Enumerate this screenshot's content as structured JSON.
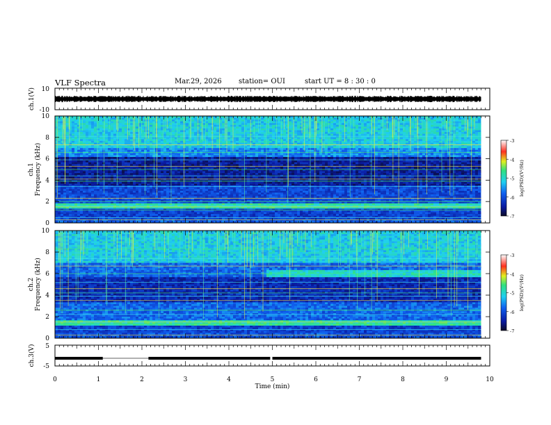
{
  "header": {
    "title": "VLF Spectra",
    "date": "Mar.29, 2026",
    "station": "station= OUI",
    "start_ut": "start  UT =  8 : 30 : 0"
  },
  "chart_data": [
    {
      "type": "line",
      "panel": "waveform-ch1",
      "ylabel": "ch.1(V)",
      "ylim": [
        -10,
        10
      ],
      "yticks": [
        "10",
        "-10"
      ],
      "x_range": [
        0,
        9.8
      ],
      "center_value": 0,
      "envelope_amplitude": 2.5
    },
    {
      "type": "heatmap",
      "panel": "spectrogram-ch1",
      "ylabel_lines": [
        "ch.1",
        "Frequency (kHz)"
      ],
      "ylim": [
        0,
        10
      ],
      "yticks": [
        "0",
        "2",
        "4",
        "6",
        "8",
        "10"
      ],
      "x_range": [
        0,
        9.8
      ],
      "colorbar": {
        "label": "log(PSD)(V²/Hz)",
        "range": [
          -7,
          -3
        ],
        "ticks": [
          "-3",
          "-4",
          "-5",
          "-6",
          "-7"
        ]
      },
      "bands": [
        {
          "lo": 0.0,
          "hi": 0.4,
          "level": 0.28
        },
        {
          "lo": 0.4,
          "hi": 1.3,
          "level": 0.22
        },
        {
          "lo": 1.3,
          "hi": 1.8,
          "level": 0.55
        },
        {
          "lo": 1.8,
          "hi": 3.5,
          "level": 0.24
        },
        {
          "lo": 3.5,
          "hi": 6.2,
          "level": 0.12
        },
        {
          "lo": 6.2,
          "hi": 7.0,
          "level": 0.35
        },
        {
          "lo": 7.0,
          "hi": 10.0,
          "level": 0.46
        }
      ],
      "lines_khz": [
        0.3,
        0.5,
        1.2,
        1.5,
        1.6,
        2.0,
        2.3,
        3.4,
        3.9,
        4.1,
        4.4,
        5.0,
        5.3,
        5.9,
        6.6,
        7.3,
        8.1
      ]
    },
    {
      "type": "heatmap",
      "panel": "spectrogram-ch2",
      "ylabel_lines": [
        "ch.2",
        "Frequency (kHz)"
      ],
      "ylim": [
        0,
        10
      ],
      "yticks": [
        "0",
        "2",
        "4",
        "6",
        "8",
        "10"
      ],
      "x_range": [
        0,
        9.8
      ],
      "colorbar": {
        "label": "log(PSD)(V²/Hz)",
        "range": [
          -7,
          -3
        ],
        "ticks": [
          "-3",
          "-4",
          "-5",
          "-6",
          "-7"
        ]
      },
      "bands": [
        {
          "lo": 0.0,
          "hi": 0.5,
          "level": 0.26
        },
        {
          "lo": 0.5,
          "hi": 1.2,
          "level": 0.22
        },
        {
          "lo": 1.2,
          "hi": 1.6,
          "level": 0.55
        },
        {
          "lo": 1.6,
          "hi": 3.4,
          "level": 0.3
        },
        {
          "lo": 3.4,
          "hi": 5.6,
          "level": 0.16
        },
        {
          "lo": 5.6,
          "hi": 7.0,
          "level": 0.3
        },
        {
          "lo": 7.0,
          "hi": 10.0,
          "level": 0.46
        }
      ],
      "enhanced_band": {
        "t_start": 4.85,
        "t_end": 9.8,
        "lo": 5.6,
        "hi": 6.4,
        "level": 0.5
      },
      "lines_khz": [
        0.3,
        0.8,
        1.3,
        1.5,
        2.2,
        2.6,
        3.5,
        3.9,
        4.2,
        4.6,
        5.2,
        6.0,
        6.7,
        7.4,
        8.3
      ]
    },
    {
      "type": "line",
      "panel": "waveform-ch3",
      "ylabel": "ch.3(V)",
      "ylim": [
        -5,
        5
      ],
      "yticks": [
        "5",
        "-5"
      ],
      "xlabel": "Time (min)",
      "xlim": [
        0,
        10
      ],
      "xticks": [
        "0",
        "1",
        "2",
        "3",
        "4",
        "5",
        "6",
        "7",
        "8",
        "9",
        "10"
      ],
      "level": -1.3,
      "segments": [
        [
          0,
          1.1
        ],
        [
          2.15,
          4.95
        ],
        [
          5.0,
          9.8
        ]
      ]
    }
  ]
}
